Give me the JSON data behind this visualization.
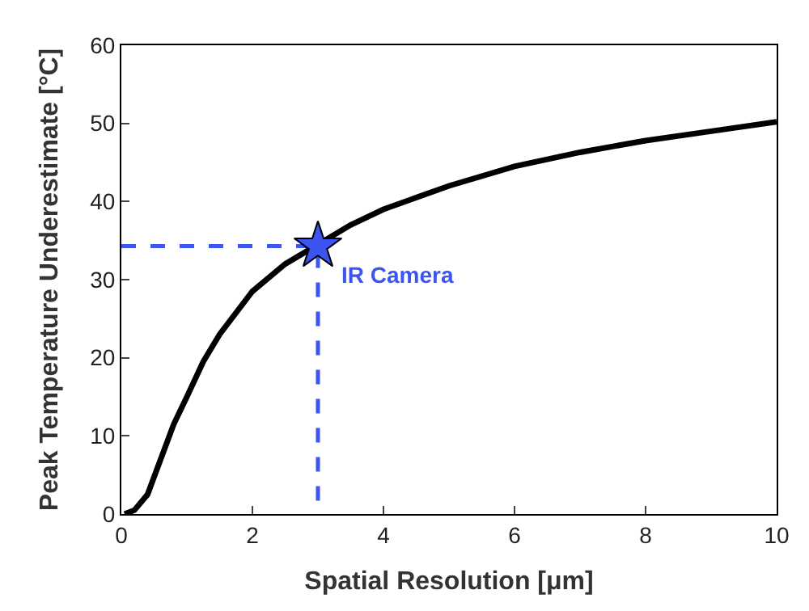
{
  "chart_data": {
    "type": "line",
    "xlabel": "Spatial Resolution [μm]",
    "ylabel": "Peak Temperature Underestimate [°C]",
    "xlim": [
      0,
      10
    ],
    "xticks": [
      0,
      2,
      4,
      6,
      8,
      10
    ],
    "ylim": [
      0,
      60
    ],
    "yticks": [
      0,
      10,
      20,
      30,
      40,
      50,
      60
    ],
    "series": [
      {
        "color": "#000000",
        "line_style": "solid",
        "marker": "none",
        "x": [
          0.05,
          0.2,
          0.4,
          0.6,
          0.8,
          1,
          1.25,
          1.5,
          2,
          2.5,
          3,
          3.5,
          4,
          5,
          6,
          7,
          8,
          9,
          10
        ],
        "values": [
          0,
          0.5,
          2.5,
          7,
          11.5,
          15,
          19.5,
          23,
          28.5,
          32,
          34.5,
          37,
          39,
          42,
          44.5,
          46.3,
          47.8,
          49,
          50.2
        ]
      },
      {
        "color": "#3d55f0",
        "line_style": "dashed",
        "marker": "none",
        "x": [
          0,
          3,
          3
        ],
        "values": [
          34.3,
          34.3,
          0
        ]
      },
      {
        "type": "scatter",
        "color": "#3d55f0",
        "marker": "star",
        "x": [
          3
        ],
        "values": [
          34.3
        ]
      }
    ],
    "annotations": [
      {
        "text": "IR Camera",
        "x": 3,
        "y": 34.3
      }
    ]
  }
}
